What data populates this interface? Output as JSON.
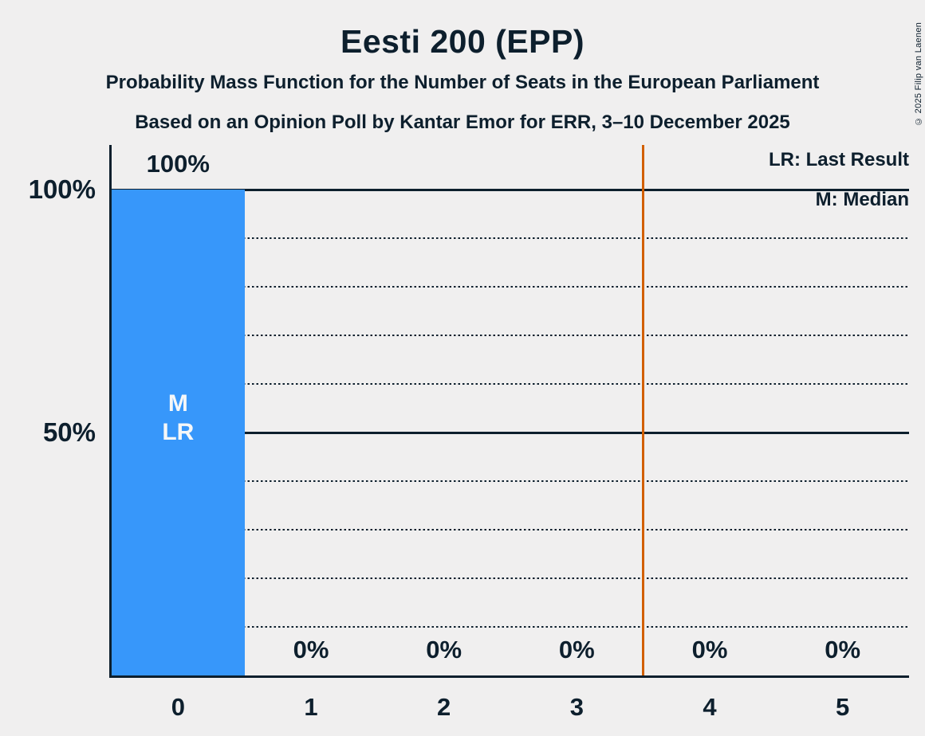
{
  "copyright": "© 2025 Filip van Laenen",
  "chart_data": {
    "type": "bar",
    "title": "Eesti 200 (EPP)",
    "subtitle": "Probability Mass Function for the Number of Seats in the European Parliament",
    "source_line": "Based on an Opinion Poll by Kantar Emor for ERR, 3–10 December 2025",
    "categories": [
      "0",
      "1",
      "2",
      "3",
      "4",
      "5"
    ],
    "values": [
      100,
      0,
      0,
      0,
      0,
      0
    ],
    "value_labels": [
      "100%",
      "0%",
      "0%",
      "0%",
      "0%",
      "0%"
    ],
    "xlabel": "",
    "ylabel": "",
    "ylim": [
      0,
      100
    ],
    "y_ticks": [
      {
        "label": "100%",
        "value": 100
      },
      {
        "label": "50%",
        "value": 50
      }
    ],
    "gridlines": {
      "solid_pct": [
        100,
        50
      ],
      "dotted_pct": [
        90,
        80,
        70,
        60,
        40,
        30,
        20,
        10
      ]
    },
    "bar_markers": [
      {
        "category": "0",
        "lines": [
          "M",
          "LR"
        ]
      }
    ],
    "threshold_x_seats": 3.5,
    "legend": [
      "LR: Last Result",
      "M: Median"
    ],
    "legend_position": "top-right",
    "grid": true,
    "colors": {
      "bar": "#3797fa",
      "threshold": "#d25f00",
      "ink": "#0d1f2d",
      "background": "#f0efef",
      "bar_label": "#f5f7f8"
    }
  }
}
